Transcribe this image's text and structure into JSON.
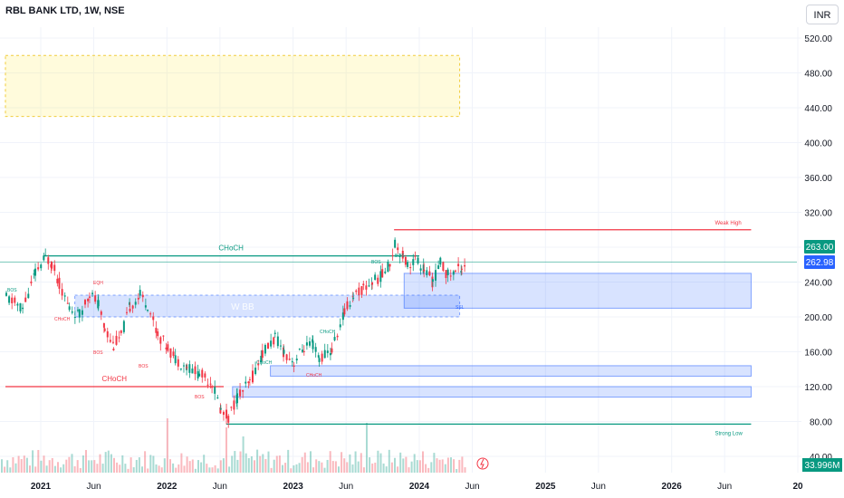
{
  "header": {
    "title": "RBL BANK LTD, 1W, NSE",
    "currency": "INR"
  },
  "price_labels": {
    "last": "263.00",
    "close": "262.98",
    "volume": "33.996M"
  },
  "chart_data": {
    "type": "candlestick",
    "title": "RBL BANK LTD, 1W, NSE",
    "ylim": [
      40,
      540
    ],
    "y_ticks": [
      "520.00",
      "480.00",
      "440.00",
      "400.00",
      "360.00",
      "320.00",
      "280.00",
      "240.00",
      "200.00",
      "160.00",
      "120.00",
      "80.00",
      "40.00"
    ],
    "y_tick_values": [
      520,
      480,
      440,
      400,
      360,
      320,
      280,
      240,
      200,
      160,
      120,
      80,
      40
    ],
    "x_ticks": [
      "2021",
      "Jun",
      "2022",
      "Jun",
      "2023",
      "Jun",
      "2024",
      "Jun",
      "2025",
      "Jun",
      "2026",
      "Jun",
      "20"
    ],
    "x_tick_values": [
      2021.0,
      2021.42,
      2022.0,
      2022.42,
      2023.0,
      2023.42,
      2024.0,
      2024.42,
      2025.0,
      2025.42,
      2026.0,
      2026.42,
      2027.0
    ],
    "x_range": [
      2020.72,
      2026.8
    ],
    "last_price": 263.0,
    "prev_close": 262.98,
    "volume_last": "33.996M",
    "price_path": [
      [
        2020.72,
        222
      ],
      [
        2020.85,
        210
      ],
      [
        2020.95,
        250
      ],
      [
        2021.03,
        268
      ],
      [
        2021.08,
        262
      ],
      [
        2021.14,
        238
      ],
      [
        2021.22,
        210
      ],
      [
        2021.3,
        202
      ],
      [
        2021.38,
        228
      ],
      [
        2021.45,
        214
      ],
      [
        2021.5,
        187
      ],
      [
        2021.57,
        168
      ],
      [
        2021.63,
        178
      ],
      [
        2021.7,
        212
      ],
      [
        2021.78,
        225
      ],
      [
        2021.84,
        214
      ],
      [
        2021.92,
        180
      ],
      [
        2022.0,
        165
      ],
      [
        2022.06,
        152
      ],
      [
        2022.15,
        143
      ],
      [
        2022.25,
        135
      ],
      [
        2022.35,
        125
      ],
      [
        2022.42,
        93
      ],
      [
        2022.48,
        85
      ],
      [
        2022.55,
        108
      ],
      [
        2022.65,
        124
      ],
      [
        2022.75,
        158
      ],
      [
        2022.85,
        176
      ],
      [
        2022.92,
        160
      ],
      [
        2023.0,
        148
      ],
      [
        2023.08,
        165
      ],
      [
        2023.15,
        168
      ],
      [
        2023.2,
        152
      ],
      [
        2023.3,
        162
      ],
      [
        2023.4,
        205
      ],
      [
        2023.47,
        225
      ],
      [
        2023.55,
        232
      ],
      [
        2023.62,
        240
      ],
      [
        2023.7,
        248
      ],
      [
        2023.76,
        262
      ],
      [
        2023.8,
        285
      ],
      [
        2023.84,
        276
      ],
      [
        2023.9,
        260
      ],
      [
        2023.96,
        266
      ],
      [
        2024.03,
        255
      ],
      [
        2024.1,
        240
      ],
      [
        2024.16,
        262
      ],
      [
        2024.22,
        248
      ],
      [
        2024.28,
        252
      ],
      [
        2024.33,
        258
      ],
      [
        2024.37,
        263
      ]
    ],
    "levels": [
      {
        "label": "CHoCH",
        "value": 270,
        "from": 2021.02,
        "to": 2024.0,
        "color": "#089981"
      },
      {
        "label": "Weak High",
        "value": 300,
        "from": 2023.8,
        "to": 2026.63,
        "color": "#f23645"
      },
      {
        "label": "Strong Low",
        "value": 77,
        "from": 2022.47,
        "to": 2026.63,
        "color": "#089981"
      },
      {
        "label": "CHoCH",
        "value": 120,
        "from": 2020.72,
        "to": 2022.45,
        "color": "#f23645"
      }
    ],
    "zones": [
      {
        "label": "",
        "from": 2020.72,
        "to": 2024.32,
        "low": 430,
        "high": 500,
        "color": "yellow"
      },
      {
        "label": "W BB",
        "from": 2021.27,
        "to": 2024.32,
        "low": 200,
        "high": 225,
        "color": "blue"
      },
      {
        "label": "",
        "from": 2023.88,
        "to": 2026.63,
        "low": 210,
        "high": 250,
        "color": "blue"
      },
      {
        "label": "",
        "from": 2022.82,
        "to": 2026.63,
        "low": 132,
        "high": 144,
        "color": "blue"
      },
      {
        "label": "",
        "from": 2022.52,
        "to": 2026.63,
        "low": 108,
        "high": 120,
        "color": "blue"
      }
    ],
    "small_labels": [
      "BOS",
      "EQH",
      "CHoCH",
      "BOS",
      "BOS",
      "BOS",
      "CHoCH",
      "CHoCH",
      "CHoCH",
      "BOS",
      "BOS",
      "SSL"
    ],
    "grid": true
  }
}
